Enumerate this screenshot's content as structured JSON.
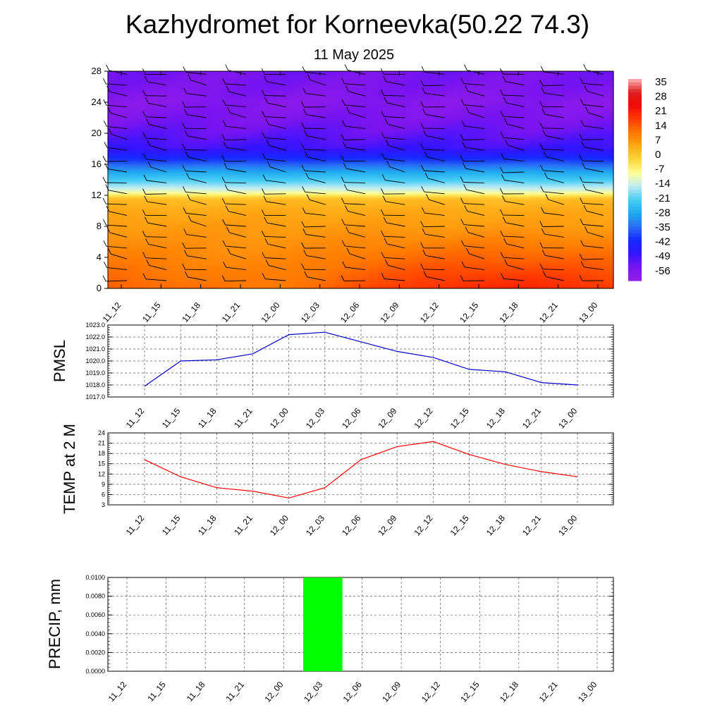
{
  "title": "Kazhydromet for Korneevka(50.22 74.3)",
  "subtitle": "11 May 2025",
  "time_labels": [
    "11_12",
    "11_15",
    "11_18",
    "11_21",
    "12_00",
    "12_03",
    "12_06",
    "12_09",
    "12_12",
    "12_15",
    "12_18",
    "12_21",
    "13_00"
  ],
  "chart_data": [
    {
      "type": "heatmap",
      "name": "temperature-wind-cross-section",
      "x": [
        "11_12",
        "11_15",
        "11_18",
        "11_21",
        "12_00",
        "12_03",
        "12_06",
        "12_09",
        "12_12",
        "12_15",
        "12_18",
        "12_21",
        "13_00"
      ],
      "ylim": [
        0,
        28
      ],
      "yticks": [
        0,
        4,
        8,
        12,
        16,
        20,
        24,
        28
      ],
      "colorbar_labels": [
        "35",
        "28",
        "21",
        "14",
        "7",
        "0",
        "-7",
        "-14",
        "-21",
        "-28",
        "-35",
        "-42",
        "-49",
        "-56"
      ],
      "colorbar_range": [
        -63,
        42
      ],
      "profile_levels": [
        0,
        2,
        4,
        6,
        8,
        10,
        11.5,
        12.5,
        13.5,
        15,
        16.5,
        18,
        20,
        22,
        24,
        26,
        28
      ],
      "profile_values": [
        17,
        15,
        13,
        11,
        9,
        7,
        4,
        -10,
        -18,
        -28,
        -40,
        -50,
        -54,
        -57,
        -59,
        -57,
        -56
      ],
      "surface_anomaly": [
        0,
        -1,
        -2,
        -3,
        -3,
        -1,
        2,
        4,
        6,
        7,
        7,
        6,
        5
      ],
      "wind_barbs": "present"
    },
    {
      "type": "line",
      "name": "pmsl",
      "ylabel": "PMSL",
      "x": [
        "11_12",
        "11_15",
        "11_18",
        "11_21",
        "12_00",
        "12_03",
        "12_06",
        "12_09",
        "12_12",
        "12_15",
        "12_18",
        "12_21",
        "13_00"
      ],
      "values": [
        1017.9,
        1020.0,
        1020.1,
        1020.6,
        1022.2,
        1022.4,
        1021.6,
        1020.8,
        1020.3,
        1019.3,
        1019.1,
        1018.2,
        1018.0
      ],
      "ylim": [
        1017.0,
        1023.0
      ],
      "ytick_labels": [
        "1017.0",
        "1018.0",
        "1019.0",
        "1020.0",
        "1021.0",
        "1022.0",
        "1023.0"
      ],
      "color": "#0000cc",
      "grid": true
    },
    {
      "type": "line",
      "name": "temp2m",
      "ylabel": "TEMP at 2 M",
      "x": [
        "11_12",
        "11_15",
        "11_18",
        "11_21",
        "12_00",
        "12_03",
        "12_06",
        "12_09",
        "12_12",
        "12_15",
        "12_18",
        "12_21",
        "13_00"
      ],
      "values": [
        16.2,
        11.2,
        8.0,
        7.0,
        5.0,
        8.0,
        16.2,
        20.0,
        21.5,
        17.7,
        14.8,
        12.7,
        11.2
      ],
      "ylim": [
        3,
        24
      ],
      "ytick_labels": [
        "3",
        "6",
        "9",
        "12",
        "15",
        "18",
        "21",
        "24"
      ],
      "color": "#ff0000",
      "grid": true
    },
    {
      "type": "bar",
      "name": "precip",
      "ylabel": "PRECIP, mm",
      "x": [
        "11_12",
        "11_15",
        "11_18",
        "11_21",
        "12_00",
        "12_03",
        "12_06",
        "12_09",
        "12_12",
        "12_15",
        "12_18",
        "12_21",
        "13_00"
      ],
      "values": [
        0,
        0,
        0,
        0,
        0,
        0.01,
        0,
        0,
        0,
        0,
        0,
        0,
        0
      ],
      "ylim": [
        0,
        0.01
      ],
      "ytick_labels": [
        "0.0000",
        "0.0020",
        "0.0040",
        "0.0060",
        "0.0080",
        "0.0100"
      ],
      "color": "#00ff00",
      "grid": true
    }
  ]
}
